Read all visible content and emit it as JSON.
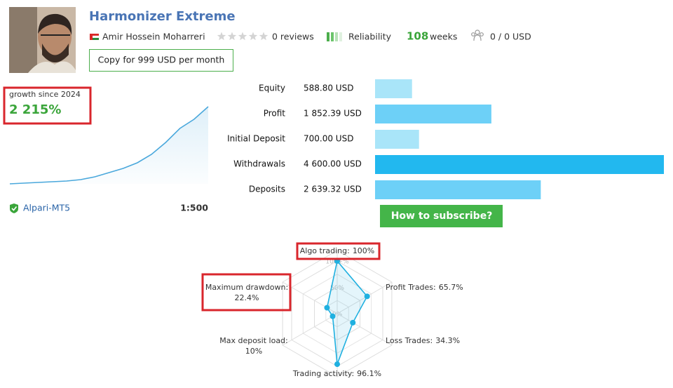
{
  "header": {
    "title": "Harmonizer Extreme",
    "author": "Amir Hossein Moharreri",
    "reviews": "0 reviews",
    "reliability": "Reliability",
    "weeks_value": "108",
    "weeks_label": "weeks",
    "subscribers": "0 / 0 USD",
    "copy_button": "Copy for 999 USD per month"
  },
  "growth": {
    "label": "growth since 2024",
    "value_label": "2 215%",
    "value": 2215,
    "curve": [
      0,
      20,
      40,
      60,
      81,
      121,
      201,
      322,
      443,
      604,
      846,
      1188,
      1591,
      1853,
      2215
    ],
    "ylim": [
      0,
      2215
    ],
    "color": "#4aa8dc",
    "broker": "Alpari-MT5",
    "leverage": "1:500"
  },
  "balances": {
    "rows": [
      {
        "label": "Equity",
        "value_label": "588.80 USD",
        "value": 588.8,
        "color": "#a9e5f9"
      },
      {
        "label": "Profit",
        "value_label": "1 852.39 USD",
        "value": 1852.39,
        "color": "#6dd0f7"
      },
      {
        "label": "Initial Deposit",
        "value_label": "700.00 USD",
        "value": 700.0,
        "color": "#a9e5f9"
      },
      {
        "label": "Withdrawals",
        "value_label": "4 600.00 USD",
        "value": 4600.0,
        "color": "#22b8ef"
      },
      {
        "label": "Deposits",
        "value_label": "2 639.32 USD",
        "value": 2639.32,
        "color": "#6dd0f7"
      }
    ]
  },
  "subscribe_button": "How to subscribe?",
  "radar": {
    "axes": [
      {
        "name": "Algo trading:",
        "value_label": "100%",
        "value": 100
      },
      {
        "name": "Profit Trades:",
        "value_label": "65.7%",
        "value": 65.7
      },
      {
        "name": "Loss Trades:",
        "value_label": "34.3%",
        "value": 34.3
      },
      {
        "name": "Trading activity:",
        "value_label": "96.1%",
        "value": 96.1
      },
      {
        "name": "Max deposit load:",
        "value_label": "10%",
        "value": 10
      },
      {
        "name": "Maximum drawdown:",
        "value_label": "22.4%",
        "value": 22.4
      }
    ],
    "ticks": [
      {
        "value": 100,
        "label": "100+%"
      },
      {
        "value": 50,
        "label": "50%"
      },
      {
        "value": 0,
        "label": "0%"
      }
    ],
    "color": "#1fb0e0"
  }
}
